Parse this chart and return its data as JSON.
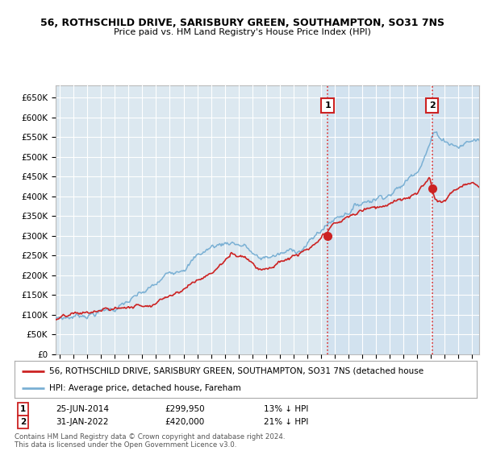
{
  "title_line1": "56, ROTHSCHILD DRIVE, SARISBURY GREEN, SOUTHAMPTON, SO31 7NS",
  "title_line2": "Price paid vs. HM Land Registry's House Price Index (HPI)",
  "ylabel_ticks": [
    "£0",
    "£50K",
    "£100K",
    "£150K",
    "£200K",
    "£250K",
    "£300K",
    "£350K",
    "£400K",
    "£450K",
    "£500K",
    "£550K",
    "£600K",
    "£650K"
  ],
  "ytick_values": [
    0,
    50000,
    100000,
    150000,
    200000,
    250000,
    300000,
    350000,
    400000,
    450000,
    500000,
    550000,
    600000,
    650000
  ],
  "xlim_start": 1994.7,
  "xlim_end": 2025.5,
  "ylim_min": 0,
  "ylim_max": 680000,
  "purchase1_date": 2014.48,
  "purchase1_price": 299950,
  "purchase1_label": "1",
  "purchase1_date_str": "25-JUN-2014",
  "purchase1_price_str": "£299,950",
  "purchase1_hpi_str": "13% ↓ HPI",
  "purchase2_date": 2022.08,
  "purchase2_price": 420000,
  "purchase2_label": "2",
  "purchase2_date_str": "31-JAN-2022",
  "purchase2_price_str": "£420,000",
  "purchase2_hpi_str": "21% ↓ HPI",
  "red_line_color": "#cc2222",
  "blue_line_color": "#7ab0d4",
  "blue_fill_color": "#c8dff0",
  "background_color": "#ffffff",
  "plot_bg_color": "#dce8f0",
  "grid_color": "#ffffff",
  "legend_label_red": "56, ROTHSCHILD DRIVE, SARISBURY GREEN, SOUTHAMPTON, SO31 7NS (detached house",
  "legend_label_blue": "HPI: Average price, detached house, Fareham",
  "footer_text": "Contains HM Land Registry data © Crown copyright and database right 2024.\nThis data is licensed under the Open Government Licence v3.0."
}
